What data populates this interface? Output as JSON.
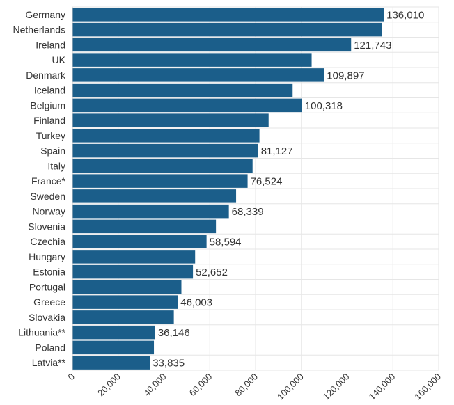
{
  "chart_data": {
    "type": "bar",
    "orientation": "horizontal",
    "title": "",
    "xlabel": "",
    "ylabel": "",
    "xlim": [
      0,
      160000
    ],
    "grid": true,
    "bar_color": "#1b5e8a",
    "x_ticks": [
      "0",
      "20,000",
      "40,000",
      "60,000",
      "80,000",
      "100,000",
      "120,000",
      "140,000",
      "160,000"
    ],
    "x_tick_values": [
      0,
      20000,
      40000,
      60000,
      80000,
      100000,
      120000,
      140000,
      160000
    ],
    "categories": [
      "Germany",
      "Netherlands",
      "Ireland",
      "UK",
      "Denmark",
      "Iceland",
      "Belgium",
      "Finland",
      "Turkey",
      "Spain",
      "Italy",
      "France*",
      "Sweden",
      "Norway",
      "Slovenia",
      "Czechia",
      "Hungary",
      "Estonia",
      "Portugal",
      "Greece",
      "Slovakia",
      "Lithuania**",
      "Poland",
      "Latvia**"
    ],
    "values": [
      136010,
      135200,
      121743,
      104500,
      109897,
      96200,
      100318,
      85700,
      81700,
      81127,
      78700,
      76524,
      71500,
      68339,
      62700,
      58594,
      53600,
      52652,
      47600,
      46003,
      44300,
      36146,
      35600,
      33835
    ],
    "data_labels": [
      "136,010",
      "",
      "121,743",
      "",
      "109,897",
      "",
      "100,318",
      "",
      "",
      "81,127",
      "",
      "76,524",
      "",
      "68,339",
      "",
      "58,594",
      "",
      "52,652",
      "",
      "46,003",
      "",
      "36,146",
      "",
      "33,835"
    ]
  }
}
